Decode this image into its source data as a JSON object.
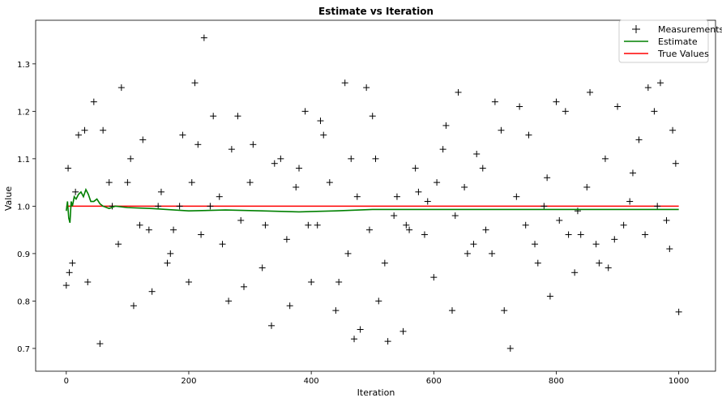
{
  "chart_data": {
    "type": "scatter",
    "title": "Estimate vs Iteration",
    "xlabel": "Iteration",
    "ylabel": "Value",
    "xlim": [
      -50,
      1060
    ],
    "ylim": [
      0.652,
      1.392
    ],
    "xticks": [
      0,
      200,
      400,
      600,
      800,
      1000
    ],
    "yticks": [
      0.7,
      0.8,
      0.9,
      1.0,
      1.1,
      1.2,
      1.3
    ],
    "ytick_labels": [
      "0.7",
      "0.8",
      "0.9",
      "1.0",
      "1.1",
      "1.2",
      "1.3"
    ],
    "grid": false,
    "legend_position": "top-right",
    "legend": [
      "Measurements",
      "Estimate",
      "True Values"
    ],
    "true_value": 1.0,
    "colors": {
      "measurements": "#000000",
      "estimate": "#008000",
      "true_values": "#ff0000"
    },
    "series": [
      {
        "name": "Measurements",
        "marker": "+",
        "x": [
          0,
          5,
          10,
          20,
          30,
          45,
          60,
          75,
          90,
          100,
          110,
          125,
          140,
          150,
          165,
          175,
          190,
          200,
          210,
          215,
          225,
          240,
          250,
          265,
          280,
          290,
          300,
          320,
          335,
          350,
          365,
          380,
          390,
          400,
          410,
          420,
          440,
          455,
          465,
          470,
          480,
          490,
          500,
          510,
          525,
          540,
          550,
          560,
          575,
          590,
          600,
          620,
          630,
          640,
          655,
          670,
          685,
          700,
          715,
          725,
          740,
          755,
          770,
          780,
          790,
          800,
          815,
          830,
          840,
          855,
          870,
          885,
          900,
          920,
          935,
          950,
          960,
          970,
          985,
          990,
          1000,
          3,
          15,
          35,
          55,
          70,
          85,
          105,
          120,
          135,
          155,
          170,
          185,
          205,
          220,
          235,
          255,
          270,
          285,
          305,
          325,
          340,
          360,
          375,
          395,
          415,
          430,
          445,
          460,
          475,
          495,
          505,
          520,
          535,
          555,
          570,
          585,
          605,
          615,
          635,
          650,
          665,
          680,
          695,
          710,
          735,
          750,
          765,
          785,
          805,
          820,
          835,
          850,
          865,
          880,
          895,
          910,
          925,
          945,
          965,
          980,
          995
        ],
        "y": [
          0.833,
          0.86,
          0.88,
          1.15,
          1.16,
          1.22,
          1.16,
          1.0,
          1.25,
          1.05,
          0.79,
          1.14,
          0.82,
          1.0,
          0.88,
          0.95,
          1.15,
          0.84,
          1.26,
          1.13,
          1.355,
          1.19,
          1.02,
          0.8,
          1.19,
          0.83,
          1.05,
          0.87,
          0.748,
          1.1,
          0.79,
          1.08,
          1.2,
          0.84,
          0.96,
          1.15,
          0.78,
          1.26,
          1.1,
          0.72,
          0.74,
          1.25,
          1.19,
          0.8,
          0.715,
          1.02,
          0.736,
          0.95,
          1.03,
          1.01,
          0.85,
          1.17,
          0.78,
          1.24,
          0.9,
          1.11,
          0.95,
          1.22,
          0.78,
          0.7,
          1.21,
          1.15,
          0.88,
          1.0,
          0.81,
          1.22,
          1.2,
          0.86,
          0.94,
          1.24,
          0.88,
          0.87,
          1.21,
          1.01,
          1.14,
          1.25,
          1.2,
          1.26,
          0.91,
          1.16,
          0.777,
          1.08,
          1.03,
          0.84,
          0.71,
          1.05,
          0.92,
          1.1,
          0.96,
          0.95,
          1.03,
          0.9,
          1.0,
          1.05,
          0.94,
          1.0,
          0.92,
          1.12,
          0.97,
          1.13,
          0.96,
          1.09,
          0.93,
          1.04,
          0.96,
          1.18,
          1.05,
          0.84,
          0.9,
          1.02,
          0.95,
          1.1,
          0.88,
          0.98,
          0.96,
          1.08,
          0.94,
          1.05,
          1.12,
          0.98,
          1.04,
          0.92,
          1.08,
          0.9,
          1.16,
          1.02,
          0.96,
          0.92,
          1.06,
          0.97,
          0.94,
          0.99,
          1.04,
          0.92,
          1.1,
          0.93,
          0.96,
          1.07,
          0.94,
          1.0,
          0.97,
          1.09
        ]
      },
      {
        "name": "Estimate",
        "x": [
          0,
          2,
          4,
          6,
          8,
          10,
          13,
          16,
          20,
          24,
          28,
          32,
          36,
          40,
          45,
          50,
          55,
          60,
          70,
          80,
          100,
          140,
          200,
          260,
          320,
          380,
          440,
          500,
          560,
          620,
          680,
          740,
          800,
          860,
          920,
          1000
        ],
        "y": [
          0.99,
          1.01,
          0.975,
          0.965,
          1.01,
          1.0,
          1.02,
          1.015,
          1.025,
          1.03,
          1.02,
          1.035,
          1.025,
          1.01,
          1.01,
          1.015,
          1.005,
          1.0,
          0.995,
          1.0,
          0.997,
          0.995,
          0.99,
          0.992,
          0.99,
          0.988,
          0.99,
          0.993,
          0.993,
          0.993,
          0.993,
          0.993,
          0.993,
          0.993,
          0.993,
          0.993
        ]
      },
      {
        "name": "True Values",
        "x": [
          0,
          1000
        ],
        "y": [
          1.0,
          1.0
        ]
      }
    ]
  }
}
